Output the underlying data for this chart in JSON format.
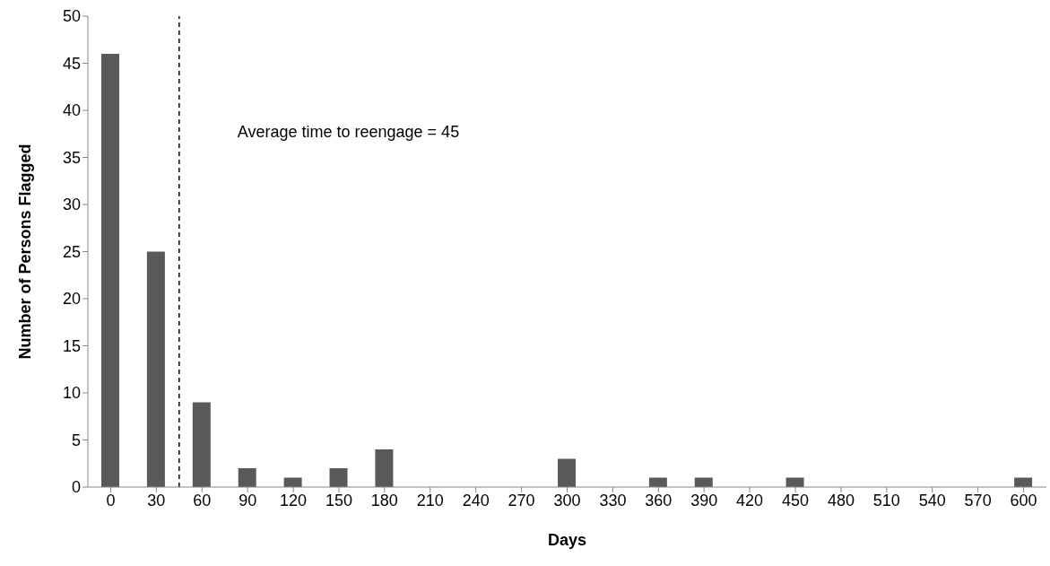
{
  "chart_data": {
    "type": "bar",
    "xlabel": "Days",
    "ylabel": "Number of Persons Flagged",
    "categories": [
      "0",
      "30",
      "60",
      "90",
      "120",
      "150",
      "180",
      "210",
      "240",
      "270",
      "300",
      "330",
      "360",
      "390",
      "420",
      "450",
      "480",
      "510",
      "540",
      "570",
      "600"
    ],
    "values": [
      46,
      25,
      9,
      2,
      1,
      2,
      4,
      0,
      0,
      0,
      3,
      0,
      1,
      1,
      0,
      1,
      0,
      0,
      0,
      0,
      1
    ],
    "color": "#595959",
    "ylim": [
      0,
      50
    ],
    "yticks": [
      0,
      5,
      10,
      15,
      20,
      25,
      30,
      35,
      40,
      45,
      50
    ],
    "annotations": [
      "Average time to reengage = 45"
    ],
    "grid": false,
    "legend": false
  }
}
